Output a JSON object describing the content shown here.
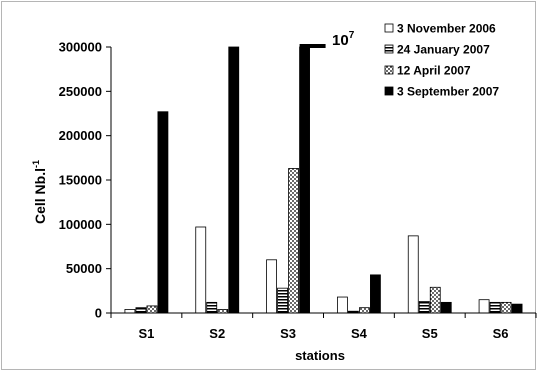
{
  "chart_data": {
    "type": "bar",
    "title": "",
    "xlabel": "stations",
    "ylabel_main": "Cell Nb.l",
    "ylabel_sup": "-1",
    "ylim": [
      0,
      300000
    ],
    "yticks": [
      0,
      50000,
      100000,
      150000,
      200000,
      250000,
      300000
    ],
    "ytick_labels": [
      "0",
      "50000",
      "100000",
      "150000",
      "200000",
      "250000",
      "300000"
    ],
    "categories": [
      "S1",
      "S2",
      "S3",
      "S4",
      "S5",
      "S6"
    ],
    "series": [
      {
        "name": "3 November 2006",
        "pattern": "white",
        "values": [
          4000,
          97000,
          60000,
          18000,
          87000,
          15000
        ]
      },
      {
        "name": "24 January 2007",
        "pattern": "hstripes",
        "values": [
          6000,
          12000,
          28000,
          2000,
          13000,
          12000
        ]
      },
      {
        "name": "12 April 2007",
        "pattern": "dots",
        "values": [
          8000,
          4000,
          163000,
          6000,
          29000,
          12000
        ]
      },
      {
        "name": "3 September 2007",
        "pattern": "black",
        "values": [
          227000,
          300000,
          300000,
          43000,
          12000,
          10000
        ]
      }
    ],
    "annotation": {
      "base": "10",
      "exponent": "7",
      "category": "S3"
    },
    "legend_position": "top-right",
    "grid": false
  }
}
